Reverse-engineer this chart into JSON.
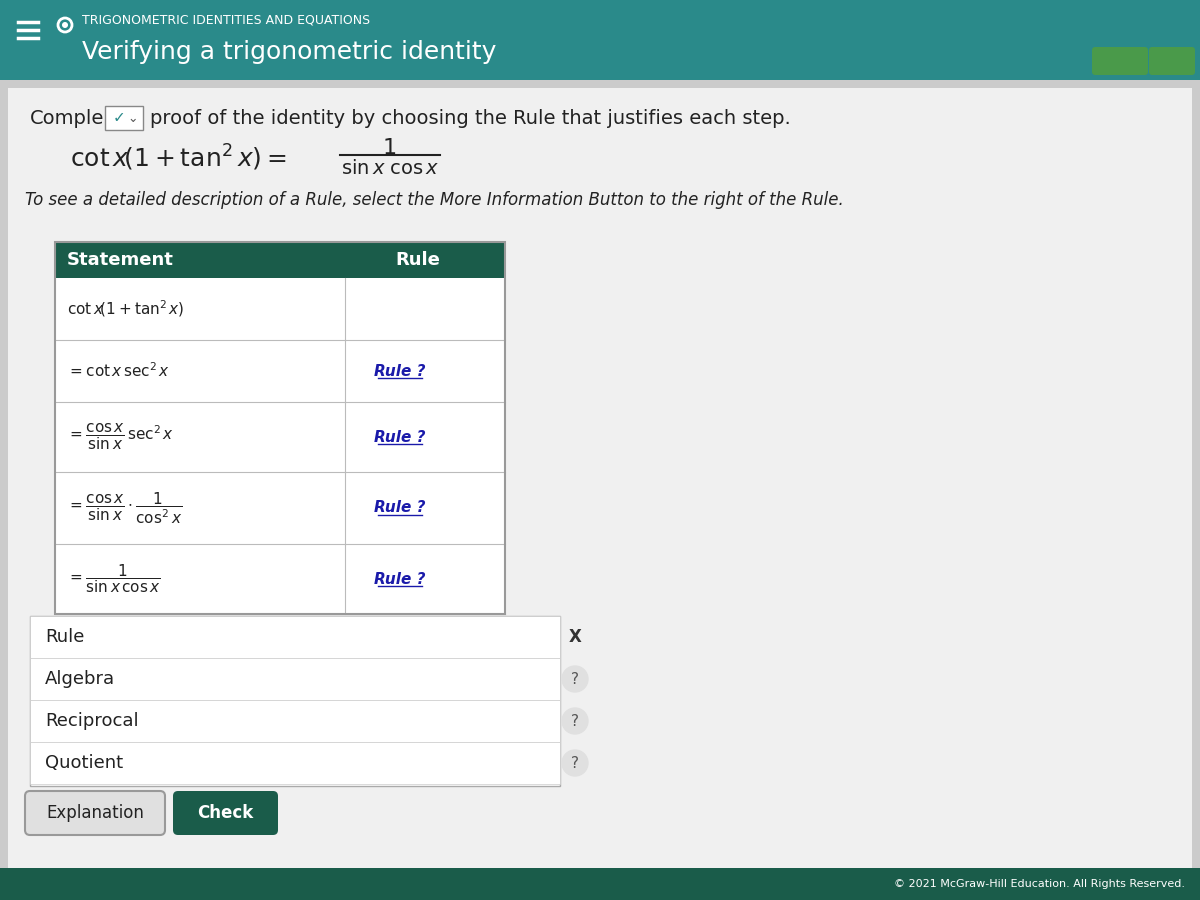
{
  "header_bg": "#2a8a8a",
  "header_subtitle": "TRIGONOMETRIC IDENTITIES AND EQUATIONS",
  "header_title": "Verifying a trigonometric identity",
  "body_bg": "#d0d0d0",
  "table_header_bg": "#1a5c4a",
  "text_color": "#222222",
  "rule_link_color": "#1a1aaa",
  "complete_text": "Comple",
  "proof_text": "proof of the identity by choosing the Rule that justifies each step.",
  "info_text": "To see a detailed description of a Rule, select the More Information Button to the right of the Rule.",
  "col1_header": "Statement",
  "col2_header": "Rule",
  "dropdown_items": [
    "Rule",
    "Algebra",
    "Reciprocal",
    "Quotient"
  ],
  "btn1": "Explanation",
  "btn2": "Check",
  "footer_text": "© 2021 McGraw-Hill Education. All Rights Reserved.",
  "footer_bg": "#1a5c4a",
  "teal_header_bg": "#1e7f8a"
}
